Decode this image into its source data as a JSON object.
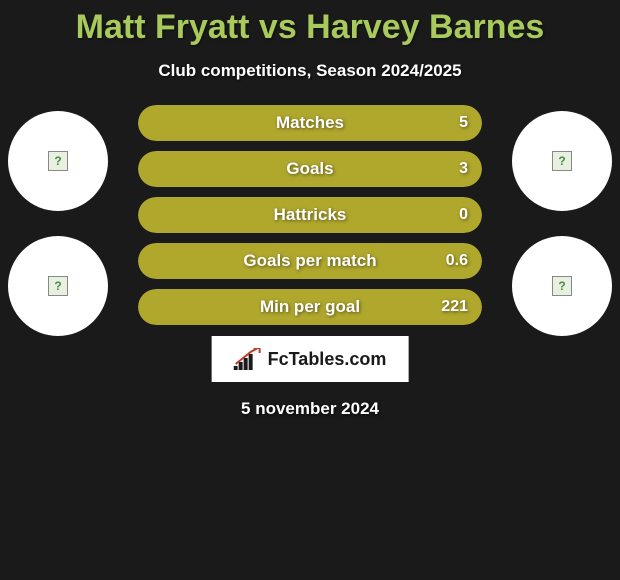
{
  "title": "Matt Fryatt vs Harvey Barnes",
  "subtitle": "Club competitions, Season 2024/2025",
  "date": "5 november 2024",
  "logo_text": "FcTables.com",
  "colors": {
    "title_color": "#a8c95c",
    "background": "#1a1a1a",
    "bar_fill_primary": "#b0a72d",
    "bar_fill_secondary": "#b0a72d",
    "avatar_bg": "#ffffff",
    "text_white": "#ffffff"
  },
  "stats": [
    {
      "label": "Matches",
      "value_right": "5",
      "left_pct": 0,
      "right_pct": 100,
      "left_color": "#b0a72d",
      "right_color": "#b0a72d"
    },
    {
      "label": "Goals",
      "value_right": "3",
      "left_pct": 0,
      "right_pct": 100,
      "left_color": "#b0a72d",
      "right_color": "#b0a72d"
    },
    {
      "label": "Hattricks",
      "value_right": "0",
      "left_pct": 0,
      "right_pct": 100,
      "left_color": "#b0a72d",
      "right_color": "#b0a72d"
    },
    {
      "label": "Goals per match",
      "value_right": "0.6",
      "left_pct": 0,
      "right_pct": 100,
      "left_color": "#b0a72d",
      "right_color": "#b0a72d"
    },
    {
      "label": "Min per goal",
      "value_right": "221",
      "left_pct": 0,
      "right_pct": 100,
      "left_color": "#b0a72d",
      "right_color": "#b0a72d"
    }
  ]
}
